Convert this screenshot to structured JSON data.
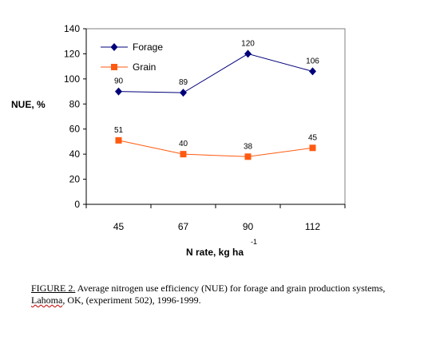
{
  "chart_data": {
    "type": "line",
    "categories": [
      "45",
      "67",
      "90",
      "112"
    ],
    "series": [
      {
        "name": "Forage",
        "values": [
          90,
          89,
          120,
          106
        ],
        "color": "#00007a",
        "marker": "diamond"
      },
      {
        "name": "Grain",
        "values": [
          51,
          40,
          38,
          45
        ],
        "color": "#ff5a10",
        "marker": "square"
      }
    ],
    "ylabel": "NUE, %",
    "xlabel_main": "N rate, kg ha",
    "xlabel_sup": "-1",
    "ylim": [
      0,
      140
    ],
    "yticks": [
      0,
      20,
      40,
      60,
      80,
      100,
      120,
      140
    ],
    "grid": false,
    "legend": "top-left"
  },
  "caption": {
    "lead": "FIGURE 2.",
    "rest_line1": " Average nitrogen use efficiency (NUE) for forage and grain production systems,",
    "squiggle_word": "Lahoma",
    "rest_line2": ", OK, (experiment 502), 1996-1999."
  }
}
